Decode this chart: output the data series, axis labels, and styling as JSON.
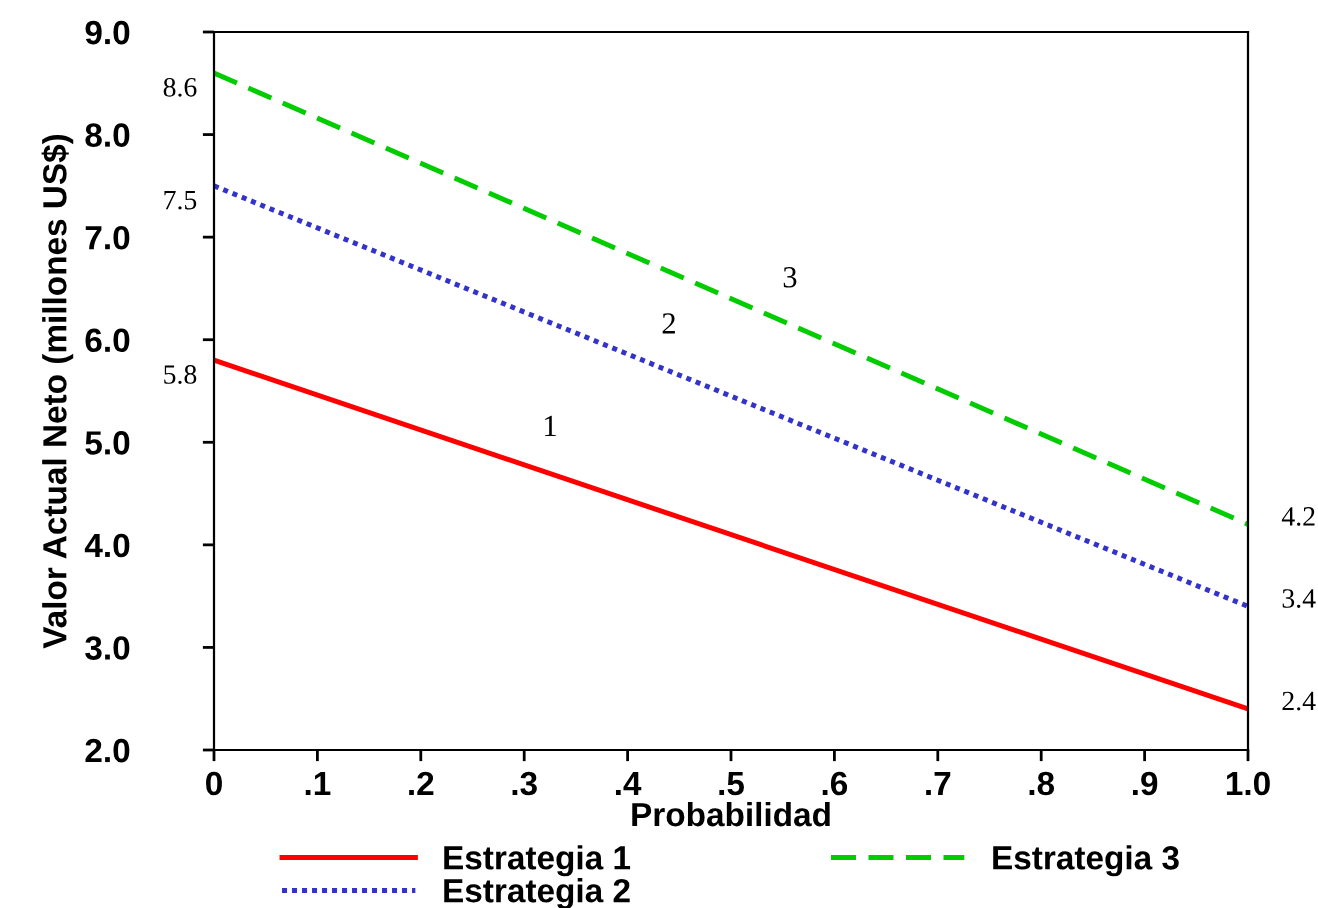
{
  "chart_data": {
    "type": "line",
    "xlabel": "Probabilidad",
    "ylabel": "Valor Actual Neto (millones US$)",
    "x": [
      0,
      1
    ],
    "series": [
      {
        "name": "Estrategia 1",
        "color": "#ff0000",
        "line_style": "solid",
        "values": [
          5.8,
          2.4
        ],
        "value_labels": [
          "5.8",
          "2.4"
        ]
      },
      {
        "name": "Estrategia 2",
        "color": "#3333cc",
        "line_style": "dotted",
        "values": [
          7.5,
          3.4
        ],
        "value_labels": [
          "7.5",
          "3.4"
        ]
      },
      {
        "name": "Estrategia 3",
        "color": "#00cc00",
        "line_style": "dashed",
        "values": [
          8.6,
          4.2
        ],
        "value_labels": [
          "8.6",
          "4.2"
        ]
      }
    ],
    "annotations": [
      {
        "text": "1",
        "x": 0.325,
        "y": 4.7
      },
      {
        "text": "2",
        "x": 0.44,
        "y": 5.7
      },
      {
        "text": "3",
        "x": 0.557,
        "y": 6.15
      }
    ],
    "xlim": [
      0,
      1
    ],
    "ylim": [
      2,
      9
    ],
    "xticks": [
      0,
      {
        "value": 0.1,
        "label": ".1"
      },
      {
        "value": 0.2,
        "label": ".2"
      },
      {
        "value": 0.3,
        "label": ".3"
      },
      {
        "value": 0.4,
        "label": ".4"
      },
      {
        "value": 0.5,
        "label": ".5"
      },
      {
        "value": 0.6,
        "label": ".6"
      },
      {
        "value": 0.7,
        "label": ".7"
      },
      {
        "value": 0.8,
        "label": ".8"
      },
      {
        "value": 0.9,
        "label": ".9"
      },
      {
        "value": 1,
        "label": "1.0"
      }
    ],
    "yticks": [
      {
        "value": 2,
        "label": "2.0"
      },
      {
        "value": 3,
        "label": "3.0"
      },
      {
        "value": 4,
        "label": "4.0"
      },
      {
        "value": 5,
        "label": "5.0"
      },
      {
        "value": 6,
        "label": "6.0"
      },
      {
        "value": 7,
        "label": "7.0"
      },
      {
        "value": 8,
        "label": "8.0"
      },
      {
        "value": 9,
        "label": "9.0"
      }
    ],
    "grid": false,
    "legend": "bottom",
    "marker": "none"
  }
}
